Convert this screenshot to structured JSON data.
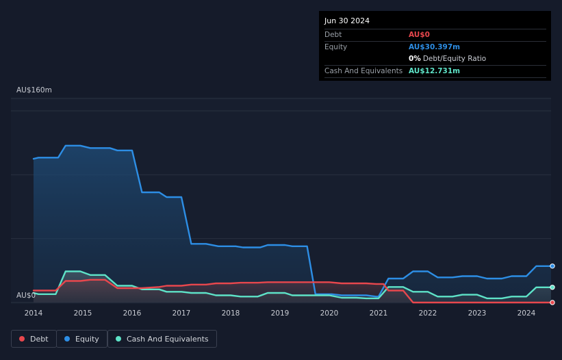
{
  "tooltip": {
    "date": "Jun 30 2024",
    "debt_label": "Debt",
    "debt_value": "AU$0",
    "equity_label": "Equity",
    "equity_value": "AU$30.397m",
    "ratio_value": "0%",
    "ratio_label": "Debt/Equity Ratio",
    "cash_label": "Cash And Equivalents",
    "cash_value": "AU$12.731m"
  },
  "legend": [
    {
      "label": "Debt",
      "color": "#e8474d"
    },
    {
      "label": "Equity",
      "color": "#2d8ee5"
    },
    {
      "label": "Cash And Equivalents",
      "color": "#5ee3c8"
    }
  ],
  "colors": {
    "debt": "#e8474d",
    "equity": "#2d8ee5",
    "cash": "#5ee3c8",
    "grid": "#2a3140",
    "text": "#c9ccd3"
  },
  "chart_data": {
    "type": "line",
    "title": "",
    "y_top_label": "AU$160m",
    "y_bottom_label": "AU$0",
    "ylim": [
      0,
      160
    ],
    "xlim": [
      2014,
      2024.6
    ],
    "x_ticks": [
      "2014",
      "2015",
      "2016",
      "2017",
      "2018",
      "2019",
      "2020",
      "2021",
      "2022",
      "2023",
      "2024"
    ],
    "series": [
      {
        "name": "Equity",
        "x": [
          2014,
          2014.1,
          2014.25,
          2014.5,
          2014.65,
          2014.95,
          2015.15,
          2015.55,
          2015.7,
          2016.0,
          2016.2,
          2016.55,
          2016.7,
          2017.0,
          2017.2,
          2017.5,
          2017.75,
          2018.1,
          2018.25,
          2018.6,
          2018.75,
          2019.1,
          2019.25,
          2019.55,
          2019.72,
          2020.05,
          2020.25,
          2020.75,
          2020.95,
          2021.0,
          2021.2,
          2021.5,
          2021.7,
          2022.0,
          2022.2,
          2022.5,
          2022.7,
          2023.0,
          2023.2,
          2023.5,
          2023.7,
          2024.0,
          2024.2,
          2024.5
        ],
        "values": [
          120,
          121,
          121,
          121,
          131,
          131,
          129,
          129,
          127,
          127,
          92,
          92,
          88,
          88,
          49,
          49,
          47,
          47,
          46,
          46,
          48,
          48,
          47,
          47,
          7,
          7,
          6,
          6,
          5,
          5,
          20,
          20,
          26,
          26,
          21,
          21,
          22,
          22,
          20,
          20,
          22,
          22,
          30.4,
          30.4
        ]
      },
      {
        "name": "Cash And Equivalents",
        "x": [
          2014,
          2014.1,
          2014.45,
          2014.65,
          2014.95,
          2015.15,
          2015.45,
          2015.7,
          2016.0,
          2016.2,
          2016.55,
          2016.7,
          2017.0,
          2017.2,
          2017.5,
          2017.7,
          2018.0,
          2018.2,
          2018.55,
          2018.75,
          2019.1,
          2019.25,
          2019.55,
          2019.75,
          2020.0,
          2020.25,
          2020.55,
          2020.75,
          2021.0,
          2021.2,
          2021.5,
          2021.7,
          2022.0,
          2022.2,
          2022.5,
          2022.7,
          2023.0,
          2023.2,
          2023.5,
          2023.7,
          2024.0,
          2024.2,
          2024.5
        ],
        "values": [
          8,
          7,
          7,
          26,
          26,
          23,
          23,
          14,
          14,
          11,
          11,
          9,
          9,
          8,
          8,
          6,
          6,
          5,
          5,
          8,
          8,
          6,
          6,
          6,
          6,
          4,
          4,
          3.5,
          3.5,
          13,
          13,
          9,
          9,
          5,
          5,
          6.5,
          6.5,
          3.5,
          3.5,
          5,
          5,
          12.7,
          12.7
        ]
      },
      {
        "name": "Debt",
        "x": [
          2014,
          2014.1,
          2014.45,
          2014.65,
          2014.95,
          2015.15,
          2015.45,
          2015.7,
          2016.0,
          2016.2,
          2016.55,
          2016.7,
          2017.0,
          2017.2,
          2017.5,
          2017.7,
          2018.0,
          2018.2,
          2018.55,
          2018.75,
          2019.1,
          2019.25,
          2019.55,
          2019.75,
          2020.0,
          2020.25,
          2020.55,
          2020.75,
          2020.95,
          2021.1,
          2021.2,
          2021.5,
          2021.7,
          2022.0,
          2024.5
        ],
        "values": [
          10,
          10,
          10,
          18,
          18,
          19,
          19,
          12,
          12,
          12,
          13,
          14,
          14,
          15,
          15,
          16,
          16,
          16.5,
          16.5,
          17,
          17,
          17,
          17,
          17,
          17,
          16,
          16,
          16,
          15.5,
          15.5,
          10,
          10,
          0,
          0,
          0
        ]
      }
    ]
  }
}
